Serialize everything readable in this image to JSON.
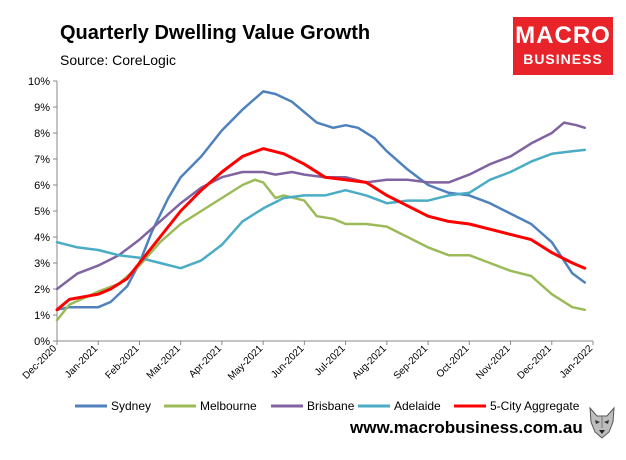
{
  "header": {
    "title": "Quarterly Dwelling Value Growth",
    "subtitle": "Source: CoreLogic"
  },
  "logo": {
    "line1": "MACRO",
    "line2": "BUSINESS"
  },
  "footer": {
    "url": "www.macrobusiness.com.au"
  },
  "chart_data": {
    "type": "line",
    "title": "Quarterly Dwelling Value Growth",
    "xlabel": "",
    "ylabel": "",
    "ylim": [
      0,
      10
    ],
    "xlim": [
      0,
      13
    ],
    "y_ticks": [
      "0%",
      "1%",
      "2%",
      "3%",
      "4%",
      "5%",
      "6%",
      "7%",
      "8%",
      "9%",
      "10%"
    ],
    "x_ticks": [
      "Dec-2020",
      "Jan-2021",
      "Feb-2021",
      "Mar-2021",
      "Apr-2021",
      "May-2021",
      "Jun-2021",
      "Jul-2021",
      "Aug-2021",
      "Sep-2021",
      "Oct-2021",
      "Nov-2021",
      "Dec-2021",
      "Jan-2022"
    ],
    "grid": false,
    "legend_position": "bottom",
    "series": [
      {
        "name": "Sydney",
        "color": "#4f81bd",
        "x": [
          0,
          0.3,
          1,
          1.3,
          1.7,
          2,
          2.3,
          2.7,
          3,
          3.5,
          4,
          4.5,
          5,
          5.3,
          5.7,
          6,
          6.3,
          6.7,
          7,
          7.3,
          7.7,
          8,
          8.5,
          9,
          9.5,
          10,
          10.5,
          11,
          11.5,
          12,
          12.5,
          12.8
        ],
        "values": [
          1.2,
          1.3,
          1.3,
          1.5,
          2.1,
          3.0,
          4.2,
          5.5,
          6.3,
          7.1,
          8.1,
          8.9,
          9.6,
          9.5,
          9.2,
          8.8,
          8.4,
          8.2,
          8.3,
          8.2,
          7.8,
          7.3,
          6.6,
          6.0,
          5.7,
          5.6,
          5.3,
          4.9,
          4.5,
          3.8,
          2.6,
          2.25
        ]
      },
      {
        "name": "Melbourne",
        "color": "#9bbb59",
        "x": [
          0,
          0.3,
          1,
          1.5,
          2,
          2.5,
          3,
          3.5,
          4,
          4.5,
          4.8,
          5,
          5.3,
          5.5,
          6,
          6.3,
          6.7,
          7,
          7.5,
          8,
          8.5,
          9,
          9.5,
          10,
          10.5,
          11,
          11.5,
          12,
          12.5,
          12.8
        ],
        "values": [
          0.8,
          1.4,
          1.9,
          2.2,
          2.9,
          3.8,
          4.5,
          5.0,
          5.5,
          6.0,
          6.2,
          6.1,
          5.5,
          5.6,
          5.4,
          4.8,
          4.7,
          4.5,
          4.5,
          4.4,
          4.0,
          3.6,
          3.3,
          3.3,
          3.0,
          2.7,
          2.5,
          1.8,
          1.3,
          1.2
        ]
      },
      {
        "name": "Brisbane",
        "color": "#8064a2",
        "x": [
          0,
          0.5,
          1,
          1.5,
          2,
          2.5,
          3,
          3.5,
          4,
          4.5,
          5,
          5.3,
          5.7,
          6,
          6.5,
          7,
          7.5,
          8,
          8.5,
          9,
          9.5,
          10,
          10.5,
          11,
          11.5,
          12,
          12.3,
          12.6,
          12.8
        ],
        "values": [
          2.0,
          2.6,
          2.9,
          3.3,
          3.9,
          4.6,
          5.3,
          5.9,
          6.3,
          6.5,
          6.5,
          6.4,
          6.5,
          6.4,
          6.3,
          6.3,
          6.1,
          6.2,
          6.2,
          6.1,
          6.1,
          6.4,
          6.8,
          7.1,
          7.6,
          8.0,
          8.4,
          8.3,
          8.2
        ]
      },
      {
        "name": "Adelaide",
        "color": "#4bacc6",
        "x": [
          0,
          0.5,
          1,
          1.5,
          2,
          2.5,
          3,
          3.5,
          4,
          4.5,
          5,
          5.5,
          6,
          6.5,
          7,
          7.5,
          8,
          8.5,
          9,
          9.5,
          10,
          10.5,
          11,
          11.5,
          12,
          12.5,
          12.8
        ],
        "values": [
          3.8,
          3.6,
          3.5,
          3.3,
          3.2,
          3.0,
          2.8,
          3.1,
          3.7,
          4.6,
          5.1,
          5.5,
          5.6,
          5.6,
          5.8,
          5.6,
          5.3,
          5.4,
          5.4,
          5.6,
          5.7,
          6.2,
          6.5,
          6.9,
          7.2,
          7.3,
          7.35
        ]
      },
      {
        "name": "5-City Aggregate",
        "color": "#ff0000",
        "x": [
          0,
          0.3,
          1,
          1.3,
          1.7,
          2,
          2.5,
          3,
          3.5,
          4,
          4.5,
          5,
          5.5,
          6,
          6.5,
          7,
          7.5,
          8,
          8.5,
          9,
          9.5,
          10,
          10.5,
          11,
          11.5,
          12,
          12.5,
          12.8
        ],
        "values": [
          1.2,
          1.6,
          1.8,
          2.0,
          2.4,
          3.0,
          4.0,
          5.0,
          5.8,
          6.5,
          7.1,
          7.4,
          7.2,
          6.8,
          6.3,
          6.2,
          6.1,
          5.6,
          5.2,
          4.8,
          4.6,
          4.5,
          4.3,
          4.1,
          3.9,
          3.4,
          3.0,
          2.8
        ]
      }
    ]
  }
}
